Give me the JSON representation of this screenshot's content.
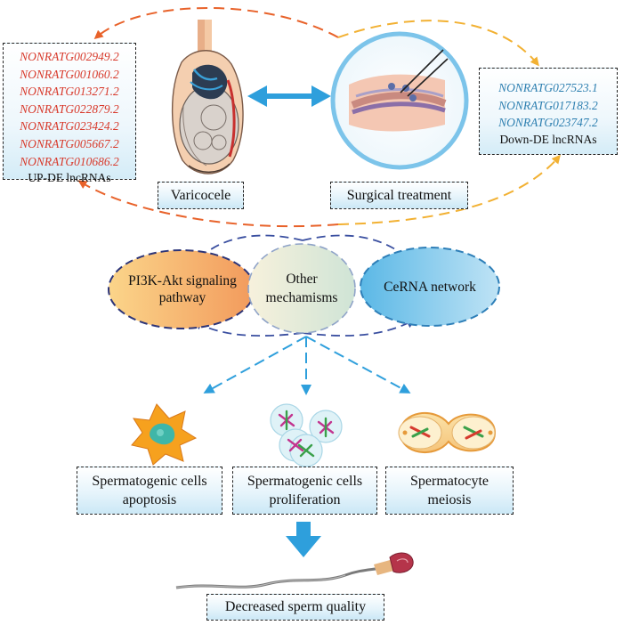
{
  "up_lncrnas": {
    "items": [
      "NONRATG002949.2",
      "NONRATG001060.2",
      "NONRATG013271.2",
      "NONRATG022879.2",
      "NONRATG023424.2",
      "NONRATG005667.2",
      "NONRATG010686.2"
    ],
    "title": "UP-DE lncRNAs"
  },
  "down_lncrnas": {
    "items": [
      "NONRATG027523.1",
      "NONRATG017183.2",
      "NONRATG023747.2"
    ],
    "title": "Down-DE lncRNAs"
  },
  "labels": {
    "varicocele": "Varicocele",
    "surgical": "Surgical treatment",
    "pi3k": "PI3K-Akt signaling pathway",
    "other": "Other mechamisms",
    "cerna": "CeRNA network",
    "apoptosis": "Spermatogenic cells apoptosis",
    "proliferation": "Spermatogenic cells proliferation",
    "meiosis": "Spermatocyte meiosis",
    "sperm_quality": "Decreased sperm quality"
  },
  "colors": {
    "orange_arc": "#e8622a",
    "yellow_arc": "#f2b133",
    "blue_arrow": "#2e9fdc",
    "navy_dash": "#3a4fa0",
    "up_text": "#d83a2c",
    "down_text": "#2d7fb0"
  }
}
